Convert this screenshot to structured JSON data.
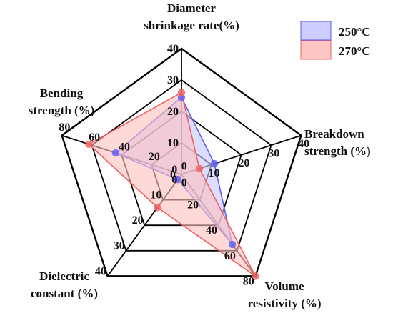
{
  "chart_data": {
    "type": "radar",
    "axes": [
      {
        "label_lines": [
          "Diameter",
          "shrinkage rate(%)"
        ],
        "max": 40,
        "ticks": [
          "0",
          "10",
          "20",
          "30",
          "40"
        ]
      },
      {
        "label_lines": [
          "Breakdown",
          "strength (%)"
        ],
        "max": 40,
        "ticks": [
          "0",
          "10",
          "20",
          "30",
          "40"
        ]
      },
      {
        "label_lines": [
          "Volume",
          "resistivity (%)"
        ],
        "max": 80,
        "ticks": [
          "0",
          "20",
          "40",
          "60",
          "80"
        ]
      },
      {
        "label_lines": [
          "Dielectric",
          "constant (%)"
        ],
        "max": 40,
        "ticks": [
          "0",
          "10",
          "20",
          "30",
          "40"
        ]
      },
      {
        "label_lines": [
          "Bending",
          "strength (%)"
        ],
        "max": 80,
        "ticks": [
          "0",
          "20",
          "40",
          "60",
          "80"
        ]
      }
    ],
    "series": [
      {
        "name": "250°C",
        "color": "#5b5bf0",
        "fill": "#c8c8ff",
        "values": [
          24.5,
          11,
          55,
          2,
          44
        ]
      },
      {
        "name": "270°C",
        "color": "#f06060",
        "fill": "#ffc0c0",
        "values": [
          26,
          6,
          80,
          13,
          62
        ]
      }
    ],
    "legend_position": "top-right",
    "grid": true
  }
}
